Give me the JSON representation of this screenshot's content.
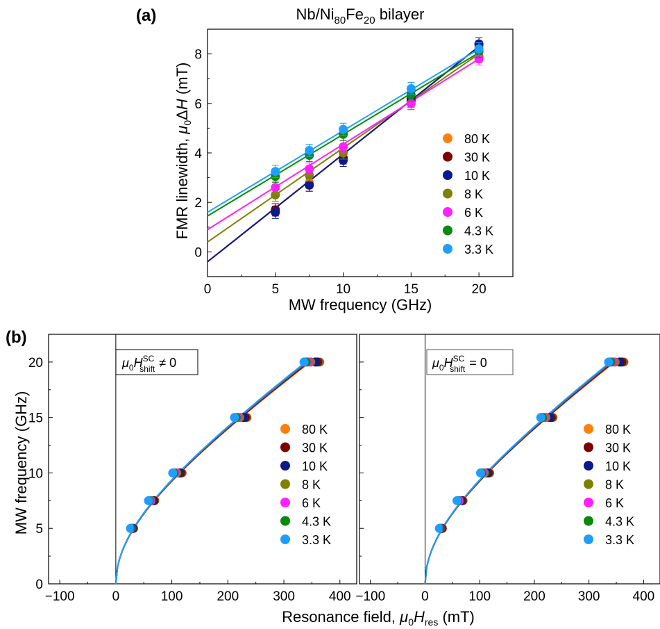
{
  "chart_data": [
    {
      "panel": "(a)",
      "type": "scatter",
      "title_parts": [
        "Nb/Ni",
        "80",
        "Fe",
        "20",
        " bilayer"
      ],
      "xlabel": "MW frequency (GHz)",
      "ylabel_parts": [
        "FMR linewidth, ",
        "μ",
        "0",
        "Δ",
        "H",
        " (mT)"
      ],
      "xlim": [
        0,
        22.5
      ],
      "ylim": [
        -1,
        9
      ],
      "xticks": [
        0,
        5,
        10,
        15,
        20
      ],
      "yticks": [
        0,
        2,
        4,
        6,
        8
      ],
      "legend_position": "bottom-right",
      "x": [
        5,
        7.5,
        10,
        15,
        20
      ],
      "series": [
        {
          "name": "80 K",
          "color": "#ff7f0e",
          "values": [
            1.7,
            2.8,
            3.8,
            6.1,
            8.3
          ],
          "fit": [
            -0.4,
            0.435
          ]
        },
        {
          "name": "30 K",
          "color": "#7f0000",
          "values": [
            1.7,
            2.7,
            3.8,
            6.1,
            8.4
          ],
          "fit": [
            -0.4,
            0.435
          ]
        },
        {
          "name": "10 K",
          "color": "#0b1a8c",
          "values": [
            1.6,
            2.7,
            3.7,
            6.2,
            8.4
          ],
          "fit": [
            -0.4,
            0.435
          ]
        },
        {
          "name": "8 K",
          "color": "#808000",
          "values": [
            2.3,
            3.1,
            4.0,
            6.0,
            7.9
          ],
          "fit": [
            0.4,
            0.38
          ]
        },
        {
          "name": "6 K",
          "color": "#ff1fff",
          "values": [
            2.6,
            3.35,
            4.25,
            6.0,
            7.8
          ],
          "fit": [
            0.9,
            0.345
          ]
        },
        {
          "name": "4.3 K",
          "color": "#0a8a0a",
          "values": [
            3.05,
            3.9,
            4.75,
            6.35,
            8.1
          ],
          "fit": [
            1.45,
            0.33
          ]
        },
        {
          "name": "3.3 K",
          "color": "#1e9fff",
          "values": [
            3.25,
            4.1,
            4.95,
            6.6,
            8.2
          ],
          "fit": [
            1.6,
            0.33
          ]
        }
      ],
      "error": 0.25
    },
    {
      "panel": "(b)",
      "type": "line",
      "annotation": "≠ 0",
      "annotation_symbol": [
        "μ",
        "0",
        "H",
        "SC",
        "shift"
      ],
      "xlim": [
        -120,
        430
      ],
      "ylim": [
        0,
        22.5
      ],
      "xticks": [
        -100,
        0,
        100,
        200,
        300,
        400
      ],
      "yticks": [
        0,
        5,
        10,
        15,
        20
      ],
      "ylabel": "MW frequency (GHz)",
      "legend_position": "bottom-right",
      "y": [
        5,
        7.5,
        10,
        15,
        20
      ],
      "x_values": [
        27,
        60,
        104,
        215,
        340
      ]
    },
    {
      "type": "line",
      "annotation": "= 0",
      "annotation_symbol": [
        "μ",
        "0",
        "H",
        "SC",
        "shift"
      ],
      "xlim": [
        -120,
        430
      ],
      "ylim": [
        0,
        22.5
      ],
      "xticks": [
        -100,
        0,
        100,
        200,
        300,
        400
      ],
      "yticks": [
        0,
        5,
        10,
        15,
        20
      ],
      "legend_position": "bottom-right",
      "y": [
        5,
        7.5,
        10,
        15,
        20
      ],
      "x_values": [
        27,
        60,
        104,
        215,
        340
      ]
    }
  ],
  "shared_xlabel_parts": [
    "Resonance field, ",
    "μ",
    "0",
    "H",
    "res",
    " (mT)"
  ],
  "legend_labels": [
    "80 K",
    "30 K",
    "10 K",
    "8 K",
    "6 K",
    "4.3 K",
    "3.3 K"
  ],
  "legend_colors": [
    "#ff7f0e",
    "#7f0000",
    "#0b1a8c",
    "#808000",
    "#ff1fff",
    "#0a8a0a",
    "#1e9fff"
  ]
}
